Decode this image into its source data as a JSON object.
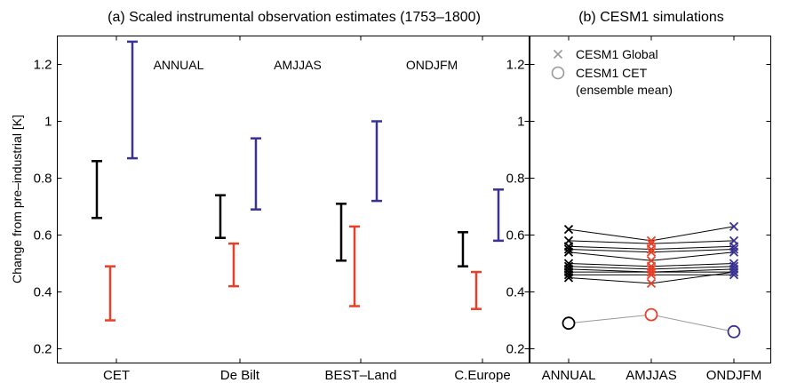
{
  "colors": {
    "annual": "#000000",
    "amjjas": "#e8402a",
    "ondjfm": "#3a3393",
    "cet_mean_line": "#999999",
    "legend_marker": "#999999"
  },
  "figure": {
    "ylabel": "Change from pre–industrial [K]"
  },
  "chart_data": [
    {
      "type": "errorbar",
      "title": "(a)  Scaled instrumental observation estimates (1753–1800)",
      "categories": [
        "CET",
        "De Bilt",
        "BEST–Land",
        "C.Europe"
      ],
      "ylim": [
        0.15,
        1.3
      ],
      "yticks": [
        0.2,
        0.4,
        0.6,
        0.8,
        1,
        1.2
      ],
      "ytick_labels": [
        "0.2",
        "0.4",
        "0.6",
        "0.8",
        "1",
        "1.2"
      ],
      "grid": false,
      "legend_labels": [
        {
          "text": "ANNUAL",
          "series": "annual"
        },
        {
          "text": "AMJJAS",
          "series": "amjjas"
        },
        {
          "text": "ONDJFM",
          "series": "ondjfm"
        }
      ],
      "series": [
        {
          "key": "annual",
          "name": "ANNUAL",
          "ranges": [
            [
              0.66,
              0.86
            ],
            [
              0.59,
              0.74
            ],
            [
              0.51,
              0.71
            ],
            [
              0.49,
              0.61
            ]
          ]
        },
        {
          "key": "amjjas",
          "name": "AMJJAS",
          "ranges": [
            [
              0.3,
              0.49
            ],
            [
              0.42,
              0.57
            ],
            [
              0.35,
              0.63
            ],
            [
              0.34,
              0.47
            ]
          ]
        },
        {
          "key": "ondjfm",
          "name": "ONDJFM",
          "ranges": [
            [
              0.87,
              1.28
            ],
            [
              0.69,
              0.94
            ],
            [
              0.72,
              1.0
            ],
            [
              0.58,
              0.76
            ]
          ]
        }
      ]
    },
    {
      "type": "scatter",
      "title": "(b)  CESM1 simulations",
      "categories": [
        "ANNUAL",
        "AMJJAS",
        "ONDJFM"
      ],
      "ylim": [
        0.15,
        1.3
      ],
      "yticks": [
        0.2,
        0.4,
        0.6,
        0.8,
        1,
        1.2
      ],
      "ytick_labels": [
        "0.2",
        "0.4",
        "0.6",
        "0.8",
        "1",
        "1.2"
      ],
      "legend": [
        {
          "marker": "x",
          "label": "CESM1 Global"
        },
        {
          "marker": "o",
          "label": "CESM1 CET",
          "label2": "(ensemble mean)"
        }
      ],
      "global_members": [
        [
          0.62,
          0.58,
          0.63
        ],
        [
          0.58,
          0.57,
          0.58
        ],
        [
          0.56,
          0.55,
          0.56
        ],
        [
          0.55,
          0.54,
          0.55
        ],
        [
          0.54,
          0.51,
          0.54
        ],
        [
          0.5,
          0.49,
          0.5
        ],
        [
          0.49,
          0.48,
          0.49
        ],
        [
          0.48,
          0.47,
          0.48
        ],
        [
          0.47,
          0.47,
          0.47
        ],
        [
          0.46,
          0.46,
          0.46
        ],
        [
          0.45,
          0.43,
          0.47
        ]
      ],
      "cet_mean": [
        0.29,
        0.32,
        0.26
      ]
    }
  ]
}
